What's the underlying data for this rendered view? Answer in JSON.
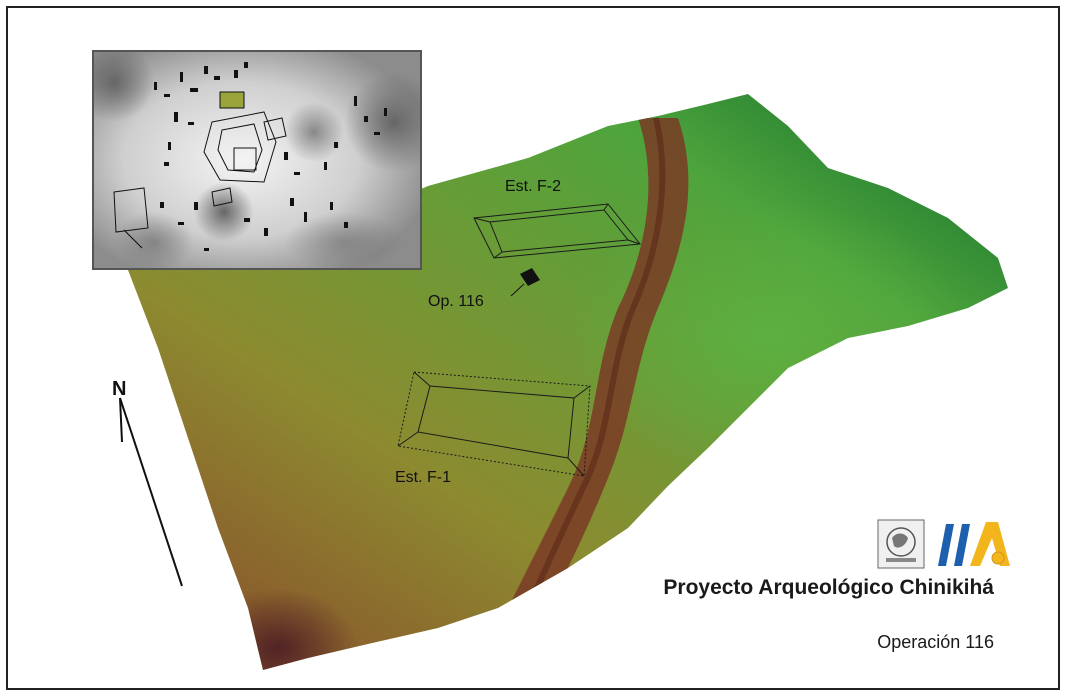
{
  "map": {
    "structures": [
      {
        "id": "f2",
        "label": "Est. F-2"
      },
      {
        "id": "f1",
        "label": "Est. F-1"
      }
    ],
    "operation_marker": {
      "label": "Op. 116"
    },
    "north_arrow": {
      "label": "N"
    },
    "colors": {
      "terrain_low": "#7a2e2a",
      "terrain_mid": "#8f8a2c",
      "terrain_green": "#52a13a",
      "terrain_dark_green": "#0f5a2a",
      "ridge_brown": "#8a4a2e"
    }
  },
  "footer": {
    "project_title": "Proyecto Arqueológico Chinikihá",
    "operation": "Operación 116",
    "logos": [
      "unam-seal-icon",
      "iia-logo-icon"
    ]
  },
  "inset": {
    "description_icon": "site-plan-icon"
  }
}
